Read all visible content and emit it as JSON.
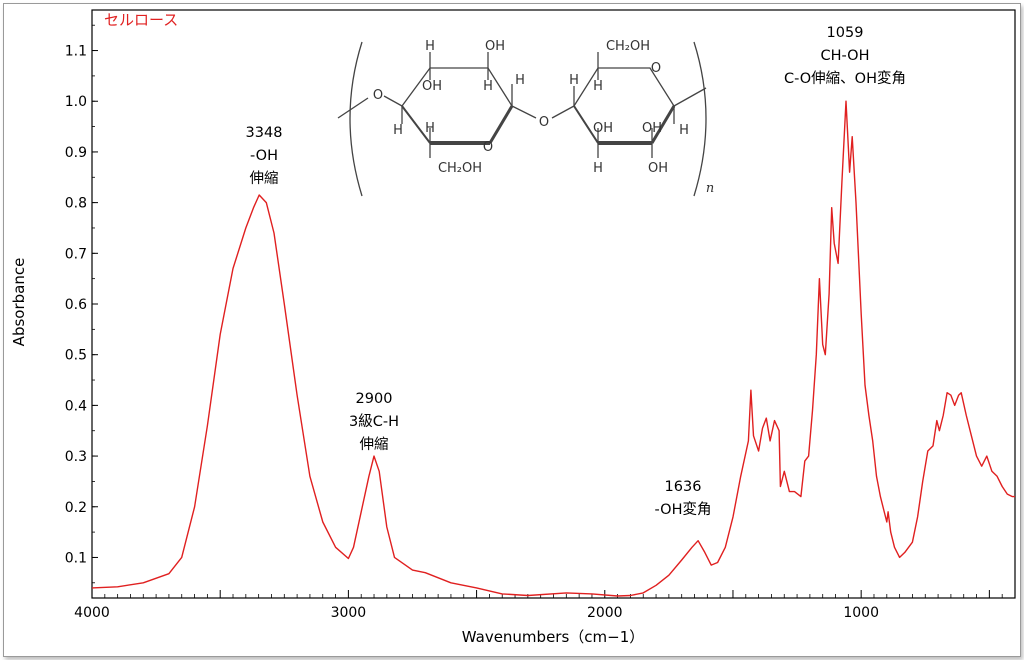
{
  "chart_data": {
    "type": "line",
    "sample_label": "セルロース",
    "xlabel": "Wavenumbers（cm−1）",
    "ylabel": "Absorbance",
    "xlim": [
      4000,
      400
    ],
    "ylim": [
      0.02,
      1.18
    ],
    "x_reversed": true,
    "x_ticks": [
      4000,
      3000,
      2000,
      1000
    ],
    "y_ticks": [
      0.1,
      0.2,
      0.3,
      0.4,
      0.5,
      0.6,
      0.7,
      0.8,
      0.9,
      1.0,
      1.1
    ],
    "series": [
      {
        "color": "#e02020",
        "points": [
          [
            4000,
            0.04
          ],
          [
            3900,
            0.042
          ],
          [
            3800,
            0.05
          ],
          [
            3700,
            0.068
          ],
          [
            3650,
            0.1
          ],
          [
            3600,
            0.2
          ],
          [
            3550,
            0.36
          ],
          [
            3500,
            0.54
          ],
          [
            3450,
            0.67
          ],
          [
            3400,
            0.75
          ],
          [
            3370,
            0.79
          ],
          [
            3348,
            0.815
          ],
          [
            3320,
            0.8
          ],
          [
            3290,
            0.74
          ],
          [
            3250,
            0.6
          ],
          [
            3200,
            0.42
          ],
          [
            3150,
            0.26
          ],
          [
            3100,
            0.17
          ],
          [
            3050,
            0.12
          ],
          [
            3000,
            0.098
          ],
          [
            2980,
            0.12
          ],
          [
            2950,
            0.19
          ],
          [
            2920,
            0.26
          ],
          [
            2900,
            0.3
          ],
          [
            2880,
            0.27
          ],
          [
            2850,
            0.16
          ],
          [
            2820,
            0.1
          ],
          [
            2750,
            0.075
          ],
          [
            2700,
            0.07
          ],
          [
            2600,
            0.05
          ],
          [
            2500,
            0.04
          ],
          [
            2400,
            0.028
          ],
          [
            2300,
            0.025
          ],
          [
            2150,
            0.03
          ],
          [
            2050,
            0.028
          ],
          [
            1950,
            0.024
          ],
          [
            1900,
            0.025
          ],
          [
            1850,
            0.03
          ],
          [
            1800,
            0.045
          ],
          [
            1750,
            0.065
          ],
          [
            1700,
            0.095
          ],
          [
            1660,
            0.12
          ],
          [
            1636,
            0.133
          ],
          [
            1610,
            0.11
          ],
          [
            1585,
            0.085
          ],
          [
            1560,
            0.09
          ],
          [
            1530,
            0.12
          ],
          [
            1500,
            0.18
          ],
          [
            1470,
            0.26
          ],
          [
            1440,
            0.33
          ],
          [
            1430,
            0.43
          ],
          [
            1420,
            0.34
          ],
          [
            1400,
            0.31
          ],
          [
            1385,
            0.355
          ],
          [
            1370,
            0.375
          ],
          [
            1355,
            0.33
          ],
          [
            1338,
            0.37
          ],
          [
            1320,
            0.35
          ],
          [
            1315,
            0.24
          ],
          [
            1300,
            0.27
          ],
          [
            1280,
            0.23
          ],
          [
            1260,
            0.23
          ],
          [
            1235,
            0.22
          ],
          [
            1220,
            0.29
          ],
          [
            1205,
            0.3
          ],
          [
            1190,
            0.39
          ],
          [
            1175,
            0.5
          ],
          [
            1163,
            0.65
          ],
          [
            1150,
            0.52
          ],
          [
            1140,
            0.5
          ],
          [
            1125,
            0.62
          ],
          [
            1115,
            0.79
          ],
          [
            1105,
            0.72
          ],
          [
            1090,
            0.68
          ],
          [
            1075,
            0.84
          ],
          [
            1059,
            1.0
          ],
          [
            1045,
            0.86
          ],
          [
            1035,
            0.93
          ],
          [
            1020,
            0.8
          ],
          [
            1000,
            0.58
          ],
          [
            985,
            0.44
          ],
          [
            970,
            0.38
          ],
          [
            955,
            0.33
          ],
          [
            940,
            0.26
          ],
          [
            925,
            0.22
          ],
          [
            900,
            0.17
          ],
          [
            895,
            0.19
          ],
          [
            885,
            0.15
          ],
          [
            870,
            0.12
          ],
          [
            850,
            0.1
          ],
          [
            830,
            0.11
          ],
          [
            800,
            0.13
          ],
          [
            780,
            0.18
          ],
          [
            760,
            0.25
          ],
          [
            740,
            0.31
          ],
          [
            720,
            0.32
          ],
          [
            705,
            0.37
          ],
          [
            695,
            0.35
          ],
          [
            680,
            0.38
          ],
          [
            665,
            0.425
          ],
          [
            650,
            0.42
          ],
          [
            635,
            0.4
          ],
          [
            620,
            0.42
          ],
          [
            610,
            0.425
          ],
          [
            590,
            0.38
          ],
          [
            570,
            0.34
          ],
          [
            550,
            0.3
          ],
          [
            530,
            0.28
          ],
          [
            510,
            0.3
          ],
          [
            490,
            0.27
          ],
          [
            470,
            0.26
          ],
          [
            450,
            0.24
          ],
          [
            430,
            0.225
          ],
          [
            410,
            0.22
          ],
          [
            400,
            0.22
          ]
        ]
      }
    ],
    "annotations": [
      {
        "lines": [
          "3348",
          "-OH",
          "伸縮"
        ]
      },
      {
        "lines": [
          "2900",
          "3級C-H",
          "伸縮"
        ]
      },
      {
        "lines": [
          "1636",
          "-OH変角"
        ]
      },
      {
        "lines": [
          "1059",
          "CH-OH",
          "C-O伸縮、OH変角"
        ]
      }
    ],
    "grid": false
  },
  "structure": {
    "labels": [
      "H",
      "OH",
      "H",
      "OH",
      "CH₂OH",
      "O",
      "H",
      "OH",
      "H",
      "H",
      "H",
      "H",
      "O",
      "O",
      "O",
      "CH₂OH",
      "H",
      "OH",
      "H",
      "OH",
      "n"
    ]
  }
}
